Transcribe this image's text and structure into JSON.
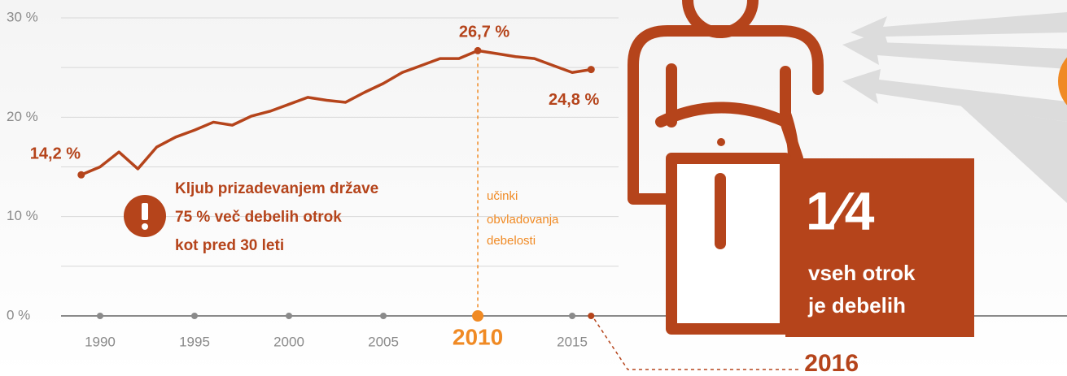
{
  "chart_data": {
    "type": "line",
    "x": [
      1989,
      1990,
      1991,
      1992,
      1993,
      1994,
      1995,
      1996,
      1997,
      1998,
      1999,
      2000,
      2001,
      2002,
      2003,
      2004,
      2005,
      2006,
      2007,
      2008,
      2009,
      2010,
      2011,
      2012,
      2013,
      2014,
      2015,
      2016
    ],
    "values": [
      14.2,
      15.0,
      16.5,
      14.8,
      17.0,
      18.0,
      18.7,
      19.5,
      19.2,
      20.1,
      20.6,
      21.3,
      22.0,
      21.7,
      21.5,
      22.5,
      23.4,
      24.5,
      25.2,
      25.9,
      25.9,
      26.7,
      26.4,
      26.1,
      25.9,
      25.2,
      24.5,
      24.8
    ],
    "value_labels": [
      "14,2 %",
      null,
      null,
      null,
      null,
      null,
      null,
      null,
      null,
      null,
      null,
      null,
      null,
      null,
      null,
      null,
      null,
      null,
      null,
      null,
      null,
      "26,7 %",
      null,
      null,
      null,
      null,
      null,
      "24,8 %"
    ],
    "color": "#b5441b",
    "xlim": [
      1984.7,
      2041.2
    ],
    "xticks": [
      1990,
      1995,
      2000,
      2005,
      2010,
      2015
    ],
    "highlight_x": 2010,
    "highlight_color": "#f08a24",
    "ylim": [
      0,
      30
    ],
    "yticks": [
      {
        "value": 0,
        "label": "0 %"
      },
      {
        "value": 10,
        "label": "10 %"
      },
      {
        "value": 20,
        "label": "20 %"
      },
      {
        "value": 30,
        "label": "30 %"
      }
    ],
    "minor_yticks": [
      5,
      15,
      25
    ],
    "grid": true,
    "annotations": {
      "warning": [
        "Kljub prizadevanjem države",
        "75 % več debelih otrok",
        "kot pred 30 leti"
      ],
      "note": [
        "učinki",
        "obvladovanja",
        "debelosti"
      ]
    }
  },
  "callout": {
    "fraction": "1⁄4",
    "lines": [
      "vseh otrok",
      "je debelih"
    ]
  }
}
